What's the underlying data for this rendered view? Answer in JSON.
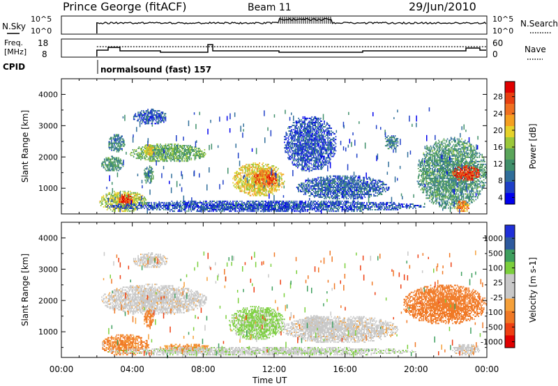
{
  "header": {
    "station": "Prince George (fitACF)",
    "beam": "Beam 11",
    "date": "29/Jun/2010"
  },
  "noise_panel": {
    "left_label": "N.Sky",
    "left_ticks": [
      "10^5",
      "10^0"
    ],
    "right_label": "N.Search",
    "right_ticks": [
      "10^5",
      "10^0"
    ]
  },
  "freq_panel": {
    "left_label_1": "Freq.",
    "left_label_2": "[MHz]",
    "left_ticks": [
      "18",
      "8"
    ],
    "right_label": "Nave",
    "right_ticks": [
      "60",
      "0"
    ]
  },
  "cpid": {
    "label": "CPID",
    "text": "normalsound (fast) 157"
  },
  "colors": {
    "power_scale": [
      "#0000ee",
      "#1e3fc8",
      "#2f6e9a",
      "#3f8f6a",
      "#5aa55a",
      "#9bc83a",
      "#e6d22a",
      "#f5a020",
      "#f07020",
      "#e84010",
      "#e00000"
    ],
    "velocity_scale": [
      "#e00000",
      "#ee3f12",
      "#f07824",
      "#f5a03a",
      "#c8c8c8",
      "#c8c8c8",
      "#7bcf3c",
      "#3e9f5e",
      "#2e5a9e",
      "#1f2fd8"
    ]
  },
  "chart_data": [
    {
      "type": "heatmap",
      "title": "",
      "xlabel": "Time UT",
      "ylabel": "Slant Range [km]",
      "colorbar_label": "Power [dB]",
      "colorbar_ticks": [
        "28",
        "24",
        "20",
        "16",
        "12",
        "8",
        "4"
      ],
      "x_ticks": [
        "00:00",
        "04:00",
        "08:00",
        "12:00",
        "16:00",
        "20:00",
        "00:00"
      ],
      "y_ticks": [
        "4000",
        "3000",
        "2000",
        "1000"
      ],
      "xlim": [
        0,
        24
      ],
      "ylim": [
        180,
        4500
      ],
      "clim": [
        0,
        30
      ],
      "data_start_hour": 2.0,
      "regions": [
        {
          "t0": 2.1,
          "t1": 4.8,
          "r0": 200,
          "r1": 900,
          "value": 16
        },
        {
          "t0": 3.2,
          "t1": 4.0,
          "r0": 400,
          "r1": 800,
          "value": 26
        },
        {
          "t0": 2.2,
          "t1": 3.5,
          "r0": 1500,
          "r1": 2000,
          "value": 10
        },
        {
          "t0": 2.6,
          "t1": 3.6,
          "r0": 2100,
          "r1": 2700,
          "value": 8
        },
        {
          "t0": 3.8,
          "t1": 8.2,
          "r0": 1800,
          "r1": 2400,
          "value": 12
        },
        {
          "t0": 4.6,
          "t1": 5.2,
          "r0": 2000,
          "r1": 2400,
          "value": 18
        },
        {
          "t0": 4.0,
          "t1": 6.0,
          "r0": 3000,
          "r1": 3500,
          "value": 5
        },
        {
          "t0": 4.6,
          "t1": 5.2,
          "r0": 1100,
          "r1": 1700,
          "value": 10
        },
        {
          "t0": 9.6,
          "t1": 12.6,
          "r0": 700,
          "r1": 1800,
          "value": 18
        },
        {
          "t0": 10.8,
          "t1": 12.2,
          "r0": 1000,
          "r1": 1600,
          "value": 24
        },
        {
          "t0": 13.2,
          "t1": 18.5,
          "r0": 600,
          "r1": 1400,
          "value": 6
        },
        {
          "t0": 12.5,
          "t1": 15.5,
          "r0": 1500,
          "r1": 3300,
          "value": 5
        },
        {
          "t0": 2.5,
          "t1": 20.5,
          "r0": 200,
          "r1": 600,
          "value": 5
        },
        {
          "t0": 18.2,
          "t1": 19.0,
          "r0": 2200,
          "r1": 2700,
          "value": 8
        },
        {
          "t0": 20.0,
          "t1": 24.0,
          "r0": 300,
          "r1": 2600,
          "value": 10
        },
        {
          "t0": 22.0,
          "t1": 23.6,
          "r0": 1200,
          "r1": 1700,
          "value": 26
        },
        {
          "t0": 22.2,
          "t1": 23.0,
          "r0": 200,
          "r1": 600,
          "value": 22
        }
      ]
    },
    {
      "type": "heatmap",
      "title": "",
      "xlabel": "Time UT",
      "ylabel": "Slant Range [km]",
      "colorbar_label": "Velocity [m s-1]",
      "colorbar_ticks": [
        "1000",
        "500",
        "100",
        "25",
        "-25",
        "-100",
        "-500",
        "-1000"
      ],
      "x_ticks": [
        "00:00",
        "04:00",
        "08:00",
        "12:00",
        "16:00",
        "20:00",
        "00:00"
      ],
      "y_ticks": [
        "4000",
        "3000",
        "2000",
        "1000"
      ],
      "xlim": [
        0,
        24
      ],
      "ylim": [
        180,
        4500
      ],
      "clim": [
        -1200,
        1200
      ],
      "data_start_hour": 2.0,
      "regions": [
        {
          "t0": 2.2,
          "t1": 5.0,
          "r0": 200,
          "r1": 900,
          "value": -120
        },
        {
          "t0": 2.2,
          "t1": 8.2,
          "r0": 1500,
          "r1": 2500,
          "value": 0
        },
        {
          "t0": 4.0,
          "t1": 6.0,
          "r0": 3000,
          "r1": 3500,
          "value": 0
        },
        {
          "t0": 4.6,
          "t1": 5.2,
          "r0": 1100,
          "r1": 1700,
          "value": -150
        },
        {
          "t0": 5.5,
          "t1": 8.5,
          "r0": 300,
          "r1": 600,
          "value": -100
        },
        {
          "t0": 9.4,
          "t1": 12.6,
          "r0": 700,
          "r1": 1800,
          "value": 130
        },
        {
          "t0": 12.4,
          "t1": 19.0,
          "r0": 600,
          "r1": 1500,
          "value": 0
        },
        {
          "t0": 13.5,
          "t1": 15.0,
          "r0": 900,
          "r1": 1500,
          "value": 60
        },
        {
          "t0": 2.5,
          "t1": 20.0,
          "r0": 200,
          "r1": 500,
          "value": 80
        },
        {
          "t0": 19.2,
          "t1": 24.0,
          "r0": 1200,
          "r1": 2500,
          "value": -180
        },
        {
          "t0": 22.0,
          "t1": 23.6,
          "r0": 200,
          "r1": 600,
          "value": 0
        }
      ]
    }
  ]
}
